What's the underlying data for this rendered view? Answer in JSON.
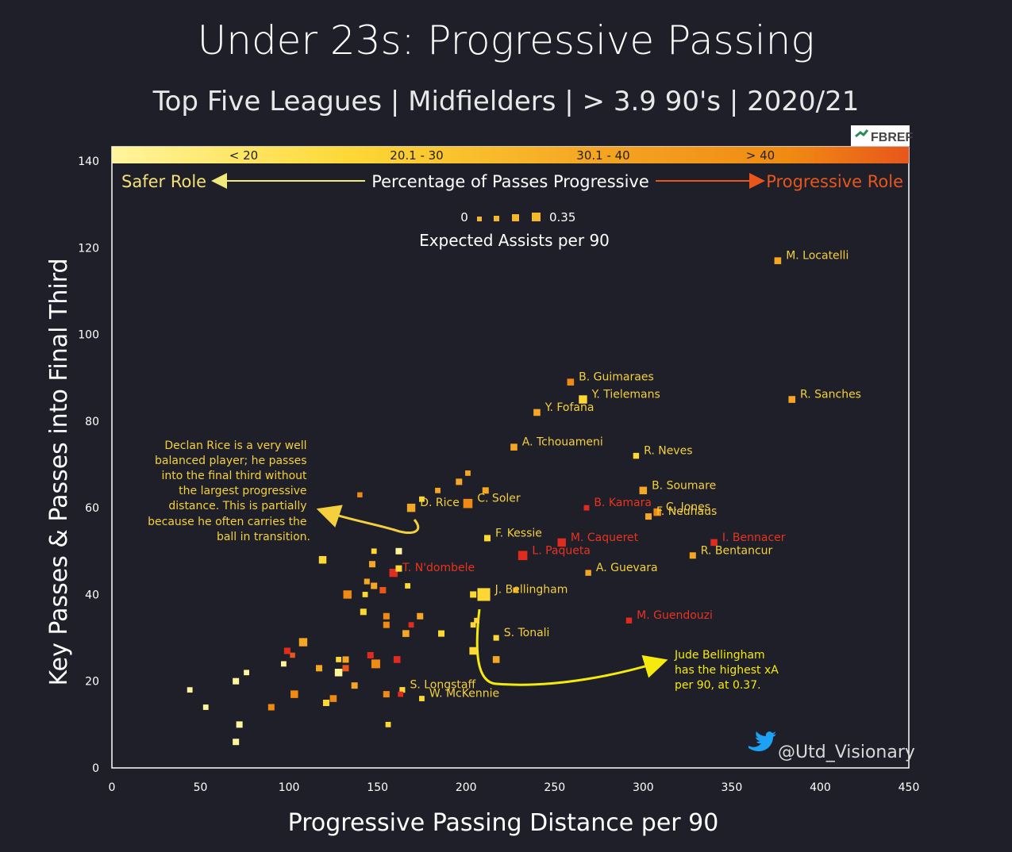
{
  "title": "Under 23s: Progressive Passing",
  "subtitle": "Top Five Leagues | Midfielders | > 3.9 90's | 2020/21",
  "source_logo_text": "FBREF",
  "credit": "@Utd_Visionary",
  "legend": {
    "color_bins": [
      "< 20",
      "20.1 - 30",
      "30.1 - 40",
      "> 40"
    ],
    "color_title": "Percentage of Passes Progressive",
    "left_role": "Safer Role",
    "right_role": "Progressive Role",
    "size_min": "0",
    "size_max": "0.35",
    "size_title": "Expected Assists per 90"
  },
  "annotations": {
    "rice": [
      "Declan Rice is a very well",
      "balanced player; he passes",
      "into the final third without",
      "the largest progressive",
      "distance. This is partially",
      "because he often carries the",
      "ball in transition."
    ],
    "bellingham": [
      "Jude Bellingham",
      "has the highest xA",
      "per 90, at 0.37."
    ]
  },
  "colors": {
    "background": "#1e1f29",
    "bin1": "#fff59d",
    "bin2": "#fdd835",
    "bin3": "#f5a623",
    "bin4": "#f08a12",
    "bin5": "#e8561c",
    "bin6": "#e02b1f",
    "label_red": "#e8341f",
    "label_yellow": "#f4d03f"
  },
  "chart_data": {
    "type": "scatter",
    "xlabel": "Progressive Passing Distance per 90",
    "ylabel": "Key Passes & Passes into Final Third",
    "xlim": [
      0,
      450
    ],
    "ylim": [
      0,
      140
    ],
    "xticks": [
      0,
      50,
      100,
      150,
      200,
      250,
      300,
      350,
      400,
      450
    ],
    "yticks": [
      0,
      20,
      40,
      60,
      80,
      100,
      120,
      140
    ],
    "grid": false,
    "points": [
      {
        "name": "M. Locatelli",
        "x": 376,
        "y": 117,
        "xa": 0.12,
        "bin": 3
      },
      {
        "name": "B. Guimaraes",
        "x": 259,
        "y": 89,
        "xa": 0.12,
        "bin": 4
      },
      {
        "name": "Y. Tielemans",
        "x": 266,
        "y": 85,
        "xa": 0.18,
        "bin": 2
      },
      {
        "name": "R. Sanches",
        "x": 384,
        "y": 85,
        "xa": 0.12,
        "bin": 3
      },
      {
        "name": "Y. Fofana",
        "x": 240,
        "y": 82,
        "xa": 0.12,
        "bin": 3
      },
      {
        "name": "A. Tchouameni",
        "x": 227,
        "y": 74,
        "xa": 0.12,
        "bin": 3
      },
      {
        "name": "R. Neves",
        "x": 296,
        "y": 72,
        "xa": 0.08,
        "bin": 2
      },
      {
        "name": "B. Soumare",
        "x": 300,
        "y": 64,
        "xa": 0.15,
        "bin": 3
      },
      {
        "name": "C. Soler",
        "x": 201,
        "y": 61,
        "xa": 0.22,
        "bin": 4
      },
      {
        "name": "B. Kamara",
        "x": 268,
        "y": 60,
        "xa": 0.06,
        "bin": 6
      },
      {
        "name": "D. Rice",
        "x": 169,
        "y": 60,
        "xa": 0.18,
        "bin": 3
      },
      {
        "name": "C. Jones",
        "x": 308,
        "y": 59,
        "xa": 0.15,
        "bin": 4
      },
      {
        "name": "F. Neuhaus",
        "x": 303,
        "y": 58,
        "xa": 0.1,
        "bin": 3
      },
      {
        "name": "F. Kessie",
        "x": 212,
        "y": 53,
        "xa": 0.1,
        "bin": 2
      },
      {
        "name": "M. Caqueret",
        "x": 254,
        "y": 52,
        "xa": 0.18,
        "bin": 6
      },
      {
        "name": "I. Bennacer",
        "x": 340,
        "y": 52,
        "xa": 0.12,
        "bin": 6
      },
      {
        "name": "L. Paqueta",
        "x": 232,
        "y": 49,
        "xa": 0.22,
        "bin": 6
      },
      {
        "name": "R. Bentancur",
        "x": 328,
        "y": 49,
        "xa": 0.1,
        "bin": 3
      },
      {
        "name": "A. Guevara",
        "x": 269,
        "y": 45,
        "xa": 0.08,
        "bin": 3
      },
      {
        "name": "T. N'dombele",
        "x": 159,
        "y": 45,
        "xa": 0.18,
        "bin": 6
      },
      {
        "name": "J. Bellingham",
        "x": 210,
        "y": 40,
        "xa": 0.37,
        "bin": 2
      },
      {
        "name": "M. Guendouzi",
        "x": 292,
        "y": 34,
        "xa": 0.08,
        "bin": 6
      },
      {
        "name": "S. Tonali",
        "x": 217,
        "y": 30,
        "xa": 0.07,
        "bin": 2
      },
      {
        "name": "S. Longstaff",
        "x": 164,
        "y": 18,
        "xa": 0.07,
        "bin": 2
      },
      {
        "name": "W. McKennie",
        "x": 175,
        "y": 16,
        "xa": 0.06,
        "bin": 2
      },
      {
        "name": "",
        "x": 140,
        "y": 63,
        "xa": 0.05,
        "bin": 4
      },
      {
        "name": "",
        "x": 175,
        "y": 62,
        "xa": 0.06,
        "bin": 2
      },
      {
        "name": "",
        "x": 184,
        "y": 64,
        "xa": 0.06,
        "bin": 3
      },
      {
        "name": "",
        "x": 196,
        "y": 66,
        "xa": 0.1,
        "bin": 3
      },
      {
        "name": "",
        "x": 201,
        "y": 68,
        "xa": 0.06,
        "bin": 3
      },
      {
        "name": "",
        "x": 211,
        "y": 64,
        "xa": 0.1,
        "bin": 3
      },
      {
        "name": "",
        "x": 119,
        "y": 48,
        "xa": 0.15,
        "bin": 2
      },
      {
        "name": "",
        "x": 147,
        "y": 47,
        "xa": 0.1,
        "bin": 3
      },
      {
        "name": "",
        "x": 148,
        "y": 50,
        "xa": 0.06,
        "bin": 2
      },
      {
        "name": "",
        "x": 162,
        "y": 50,
        "xa": 0.1,
        "bin": 1
      },
      {
        "name": "",
        "x": 162,
        "y": 46,
        "xa": 0.1,
        "bin": 2
      },
      {
        "name": "",
        "x": 144,
        "y": 43,
        "xa": 0.07,
        "bin": 3
      },
      {
        "name": "",
        "x": 148,
        "y": 42,
        "xa": 0.1,
        "bin": 3
      },
      {
        "name": "",
        "x": 153,
        "y": 41,
        "xa": 0.1,
        "bin": 5
      },
      {
        "name": "",
        "x": 143,
        "y": 40,
        "xa": 0.06,
        "bin": 2
      },
      {
        "name": "",
        "x": 167,
        "y": 42,
        "xa": 0.06,
        "bin": 2
      },
      {
        "name": "",
        "x": 133,
        "y": 40,
        "xa": 0.18,
        "bin": 4
      },
      {
        "name": "",
        "x": 204,
        "y": 40,
        "xa": 0.1,
        "bin": 2
      },
      {
        "name": "",
        "x": 228,
        "y": 41,
        "xa": 0.06,
        "bin": 3
      },
      {
        "name": "",
        "x": 142,
        "y": 36,
        "xa": 0.1,
        "bin": 2
      },
      {
        "name": "",
        "x": 155,
        "y": 35,
        "xa": 0.1,
        "bin": 4
      },
      {
        "name": "",
        "x": 155,
        "y": 33,
        "xa": 0.1,
        "bin": 4
      },
      {
        "name": "",
        "x": 169,
        "y": 33,
        "xa": 0.06,
        "bin": 6
      },
      {
        "name": "",
        "x": 174,
        "y": 35,
        "xa": 0.1,
        "bin": 3
      },
      {
        "name": "",
        "x": 166,
        "y": 31,
        "xa": 0.12,
        "bin": 3
      },
      {
        "name": "",
        "x": 186,
        "y": 31,
        "xa": 0.1,
        "bin": 2
      },
      {
        "name": "",
        "x": 204,
        "y": 33,
        "xa": 0.06,
        "bin": 2
      },
      {
        "name": "",
        "x": 206,
        "y": 34,
        "xa": 0.06,
        "bin": 2
      },
      {
        "name": "",
        "x": 108,
        "y": 29,
        "xa": 0.18,
        "bin": 3
      },
      {
        "name": "",
        "x": 99,
        "y": 27,
        "xa": 0.1,
        "bin": 6
      },
      {
        "name": "",
        "x": 102,
        "y": 26,
        "xa": 0.05,
        "bin": 5
      },
      {
        "name": "",
        "x": 97,
        "y": 24,
        "xa": 0.06,
        "bin": 1
      },
      {
        "name": "",
        "x": 128,
        "y": 25,
        "xa": 0.06,
        "bin": 2
      },
      {
        "name": "",
        "x": 132,
        "y": 25,
        "xa": 0.1,
        "bin": 3
      },
      {
        "name": "",
        "x": 146,
        "y": 26,
        "xa": 0.1,
        "bin": 6
      },
      {
        "name": "",
        "x": 149,
        "y": 24,
        "xa": 0.2,
        "bin": 4
      },
      {
        "name": "",
        "x": 161,
        "y": 25,
        "xa": 0.12,
        "bin": 6
      },
      {
        "name": "",
        "x": 204,
        "y": 27,
        "xa": 0.15,
        "bin": 2
      },
      {
        "name": "",
        "x": 217,
        "y": 25,
        "xa": 0.12,
        "bin": 3
      },
      {
        "name": "",
        "x": 117,
        "y": 23,
        "xa": 0.1,
        "bin": 3
      },
      {
        "name": "",
        "x": 132,
        "y": 23,
        "xa": 0.1,
        "bin": 5
      },
      {
        "name": "",
        "x": 128,
        "y": 22,
        "xa": 0.15,
        "bin": 1
      },
      {
        "name": "",
        "x": 76,
        "y": 22,
        "xa": 0.06,
        "bin": 1
      },
      {
        "name": "",
        "x": 70,
        "y": 20,
        "xa": 0.1,
        "bin": 1
      },
      {
        "name": "",
        "x": 137,
        "y": 19,
        "xa": 0.1,
        "bin": 3
      },
      {
        "name": "",
        "x": 103,
        "y": 17,
        "xa": 0.15,
        "bin": 4
      },
      {
        "name": "",
        "x": 125,
        "y": 16,
        "xa": 0.12,
        "bin": 4
      },
      {
        "name": "",
        "x": 121,
        "y": 15,
        "xa": 0.1,
        "bin": 2
      },
      {
        "name": "",
        "x": 155,
        "y": 17,
        "xa": 0.1,
        "bin": 4
      },
      {
        "name": "",
        "x": 163,
        "y": 17,
        "xa": 0.06,
        "bin": 6
      },
      {
        "name": "",
        "x": 90,
        "y": 14,
        "xa": 0.1,
        "bin": 4
      },
      {
        "name": "",
        "x": 44,
        "y": 18,
        "xa": 0.06,
        "bin": 1
      },
      {
        "name": "",
        "x": 53,
        "y": 14,
        "xa": 0.06,
        "bin": 1
      },
      {
        "name": "",
        "x": 72,
        "y": 10,
        "xa": 0.1,
        "bin": 1
      },
      {
        "name": "",
        "x": 156,
        "y": 10,
        "xa": 0.06,
        "bin": 2
      },
      {
        "name": "",
        "x": 70,
        "y": 6,
        "xa": 0.1,
        "bin": 1
      }
    ]
  }
}
